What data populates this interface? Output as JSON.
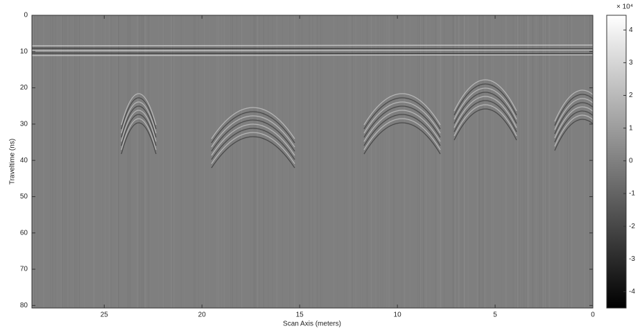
{
  "chart_data": {
    "type": "image",
    "xlabel": "Scan Axis (meters)",
    "ylabel": "Traveltime (ns)",
    "xlim": [
      28.7,
      0
    ],
    "xticks": [
      25,
      20,
      15,
      10,
      5,
      0
    ],
    "ylim": [
      0,
      80.7
    ],
    "yticks": [
      0,
      10,
      20,
      30,
      40,
      50,
      60,
      70,
      80
    ],
    "colormap": "gray",
    "colorbar_label": "× 10⁴",
    "clim": [
      -4.5,
      4.45
    ],
    "cticks": [
      -4,
      -3,
      -2,
      -1,
      0,
      1,
      2,
      3,
      4
    ]
  }
}
